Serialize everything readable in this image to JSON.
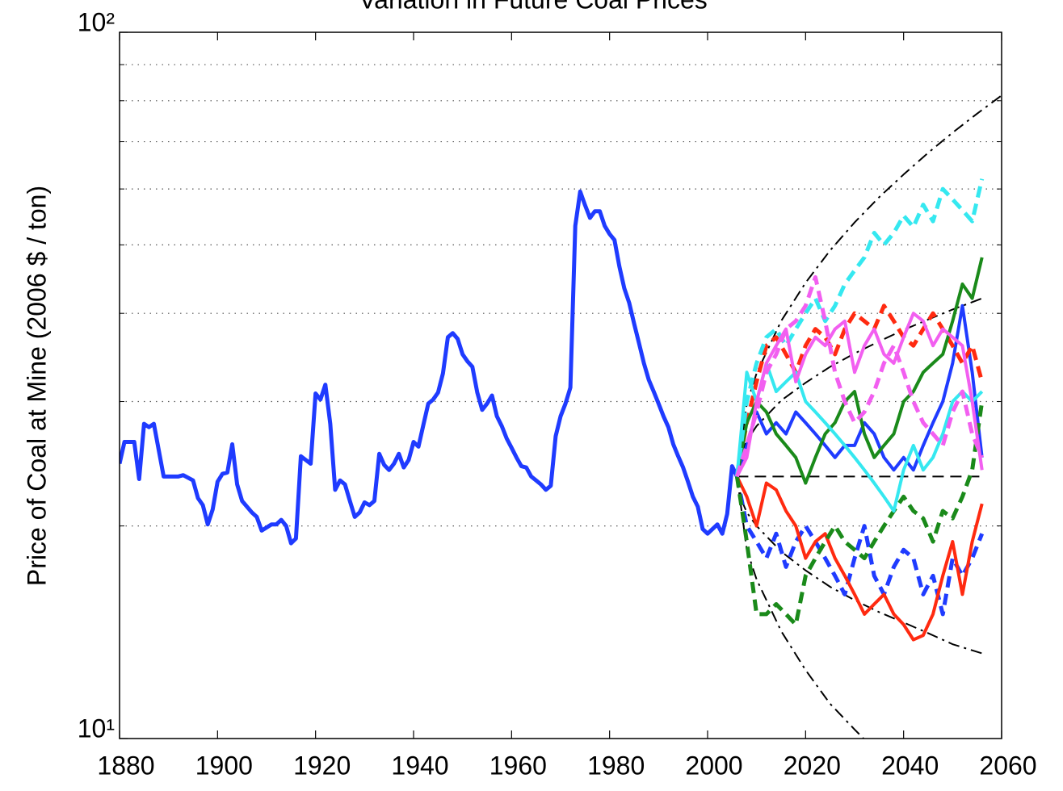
{
  "chart_data": {
    "type": "line",
    "title": "Variation in Future Coal Prices",
    "y_label": "Price of Coal at Mine (2006 $ / ton)",
    "y_scale": "log",
    "xlim": [
      1880,
      2060
    ],
    "ylim": [
      10,
      100
    ],
    "xticks": [
      1880,
      1900,
      1920,
      1940,
      1960,
      1980,
      2000,
      2020,
      2040,
      2060
    ],
    "yticks": [
      {
        "value": 10,
        "label": "10¹"
      },
      {
        "value": 100,
        "label": "10²"
      }
    ],
    "minor_yticks": [
      20,
      30,
      40,
      50,
      60,
      70,
      80,
      90
    ],
    "grid": "minor-y",
    "series": [
      {
        "color": "#1f3bff",
        "style": "solid",
        "width": 5,
        "x": [
          1880,
          1881,
          1883,
          1884,
          1885,
          1886,
          1887,
          1889,
          1892,
          1893,
          1895,
          1896,
          1897,
          1898,
          1899,
          1900,
          1901,
          1902,
          1903,
          1904,
          1905,
          1907,
          1908,
          1909,
          1911,
          1912,
          1913,
          1914,
          1915,
          1916,
          1917,
          1918,
          1919,
          1920,
          1921,
          1922,
          1923,
          1924,
          1925,
          1926,
          1927,
          1928,
          1929,
          1930,
          1931,
          1932,
          1933,
          1934,
          1935,
          1936,
          1937,
          1938,
          1939,
          1940,
          1941,
          1942,
          1943,
          1944,
          1945,
          1946,
          1947,
          1948,
          1949,
          1950,
          1951,
          1952,
          1953,
          1954,
          1955,
          1956,
          1957,
          1958,
          1959,
          1960,
          1961,
          1962,
          1963,
          1964,
          1965,
          1966,
          1967,
          1968,
          1969,
          1970,
          1971,
          1972,
          1973,
          1974,
          1975,
          1976,
          1977,
          1978,
          1979,
          1980,
          1981,
          1982,
          1983,
          1984,
          1985,
          1986,
          1987,
          1988,
          1989,
          1990,
          1991,
          1992,
          1993,
          1994,
          1995,
          1996,
          1997,
          1998,
          1999,
          2000,
          2001,
          2002,
          2003,
          2004,
          2005,
          2006
        ],
        "values": [
          24.5,
          26.3,
          26.3,
          23.3,
          27.9,
          27.6,
          27.9,
          23.5,
          23.5,
          23.6,
          23.2,
          21.9,
          21.4,
          20.1,
          21.1,
          23.1,
          23.7,
          23.8,
          26.1,
          22.9,
          21.7,
          20.9,
          20.6,
          19.7,
          20.1,
          20.1,
          20.4,
          20.0,
          18.9,
          19.2,
          25.1,
          24.8,
          24.5,
          30.8,
          30.2,
          31.7,
          27.9,
          22.5,
          23.2,
          22.9,
          21.7,
          20.6,
          20.9,
          21.6,
          21.4,
          21.7,
          25.3,
          24.4,
          24.0,
          24.5,
          25.3,
          24.2,
          24.8,
          26.3,
          25.9,
          27.8,
          29.8,
          30.2,
          30.9,
          32.9,
          37.0,
          37.5,
          36.8,
          35.0,
          34.2,
          33.6,
          30.9,
          29.2,
          29.8,
          30.6,
          28.6,
          27.7,
          26.6,
          25.8,
          25.0,
          24.3,
          24.2,
          23.5,
          23.2,
          22.9,
          22.5,
          22.8,
          26.8,
          28.6,
          29.8,
          31.4,
          53.2,
          59.5,
          56.9,
          54.6,
          55.8,
          55.8,
          53.2,
          51.8,
          50.8,
          46.6,
          43.4,
          41.4,
          38.7,
          36.3,
          34.0,
          32.2,
          31.0,
          29.8,
          28.6,
          27.6,
          26.1,
          25.1,
          24.2,
          23.1,
          22.0,
          21.3,
          19.8,
          19.5,
          19.8,
          20.1,
          19.5,
          20.8,
          24.3,
          23.5
        ]
      },
      {
        "color": "#000000",
        "style": "dashdot",
        "width": 2,
        "x": [
          2006,
          2008,
          2010,
          2015,
          2020,
          2025,
          2030,
          2035,
          2040,
          2045,
          2050,
          2055,
          2060
        ],
        "values": [
          23.5,
          29.8,
          32.9,
          39.0,
          44.2,
          49.1,
          53.8,
          58.4,
          62.9,
          67.5,
          72.1,
          76.7,
          81.4
        ]
      },
      {
        "color": "#000000",
        "style": "dashdot",
        "width": 2,
        "x": [
          2006,
          2008,
          2010,
          2015,
          2020,
          2025,
          2030,
          2035
        ],
        "values": [
          23.5,
          18.5,
          16.8,
          14.2,
          12.5,
          11.2,
          10.3,
          9.5
        ]
      },
      {
        "color": "#000000",
        "style": "dashdot",
        "width": 2,
        "x": [
          2006,
          2007,
          2008,
          2010,
          2015,
          2020,
          2025,
          2030,
          2035,
          2040,
          2045,
          2050,
          2056
        ],
        "values": [
          23.5,
          25.5,
          26.4,
          27.7,
          30.1,
          31.9,
          33.6,
          35.1,
          36.5,
          37.9,
          39.2,
          40.5,
          42.0
        ]
      },
      {
        "color": "#000000",
        "style": "dashdot",
        "width": 2,
        "x": [
          2006,
          2007,
          2008,
          2010,
          2015,
          2020,
          2025,
          2030,
          2035,
          2040,
          2045,
          2050,
          2056
        ],
        "values": [
          23.5,
          21.7,
          20.9,
          20.0,
          18.4,
          17.3,
          16.4,
          15.7,
          15.1,
          14.6,
          14.1,
          13.6,
          13.2
        ]
      },
      {
        "color": "#000000",
        "style": "dashed",
        "width": 2,
        "x": [
          2006,
          2056
        ],
        "values": [
          23.5,
          23.5
        ]
      },
      {
        "color": "#1f3bff",
        "style": "solid",
        "width": 4,
        "x": [
          2006,
          2008,
          2010,
          2012,
          2014,
          2016,
          2018,
          2020,
          2022,
          2024,
          2026,
          2028,
          2030,
          2032,
          2034,
          2036,
          2038,
          2040,
          2042,
          2044,
          2046,
          2048,
          2050,
          2052,
          2054,
          2056
        ],
        "values": [
          23.5,
          26,
          29,
          27,
          28,
          27,
          29,
          28,
          27,
          26,
          25,
          26,
          26,
          28,
          27,
          25,
          24,
          25,
          24,
          26,
          28,
          30,
          34,
          41,
          33,
          25
        ]
      },
      {
        "color": "#1f3bff",
        "style": "dashed",
        "width": 5,
        "x": [
          2006,
          2008,
          2010,
          2012,
          2014,
          2016,
          2018,
          2020,
          2022,
          2024,
          2026,
          2028,
          2030,
          2032,
          2034,
          2036,
          2038,
          2040,
          2042,
          2044,
          2046,
          2048,
          2050,
          2052,
          2054,
          2056
        ],
        "values": [
          23.5,
          20,
          19,
          18,
          19.5,
          17.5,
          19,
          20,
          19,
          18,
          17,
          16,
          18,
          20,
          17,
          16,
          17.5,
          18.5,
          18,
          16,
          17,
          15,
          18,
          17,
          18,
          19.5
        ]
      },
      {
        "color": "#ff2a10",
        "style": "solid",
        "width": 4,
        "x": [
          2006,
          2008,
          2010,
          2012,
          2014,
          2016,
          2018,
          2020,
          2022,
          2024,
          2026,
          2028,
          2030,
          2032,
          2034,
          2036,
          2038,
          2040,
          2042,
          2044,
          2046,
          2048,
          2050,
          2052,
          2054,
          2056
        ],
        "values": [
          23.5,
          22,
          20,
          23,
          22.5,
          21,
          20,
          18,
          19,
          19.5,
          18,
          17,
          16,
          15,
          15.5,
          16,
          15,
          14.5,
          13.8,
          14,
          15,
          17,
          19,
          16,
          19,
          21.5
        ]
      },
      {
        "color": "#ff2a10",
        "style": "dashed",
        "width": 5,
        "x": [
          2006,
          2008,
          2010,
          2012,
          2014,
          2016,
          2018,
          2020,
          2022,
          2024,
          2026,
          2028,
          2030,
          2032,
          2034,
          2036,
          2038,
          2040,
          2042,
          2044,
          2046,
          2048,
          2050,
          2052,
          2054,
          2056
        ],
        "values": [
          23.5,
          28,
          32,
          36,
          37,
          35,
          33,
          36,
          38,
          37,
          35,
          38,
          40,
          39,
          38,
          41,
          39,
          37,
          36,
          38,
          40,
          38,
          36,
          34,
          36,
          32
        ]
      },
      {
        "color": "#1a8a1a",
        "style": "solid",
        "width": 4,
        "x": [
          2006,
          2008,
          2010,
          2012,
          2014,
          2016,
          2018,
          2020,
          2022,
          2024,
          2026,
          2028,
          2030,
          2032,
          2034,
          2036,
          2038,
          2040,
          2042,
          2044,
          2046,
          2048,
          2050,
          2052,
          2054,
          2056
        ],
        "values": [
          23.5,
          28,
          30,
          29,
          27,
          26,
          25,
          23,
          25,
          27,
          28,
          30,
          31,
          27,
          25,
          26,
          27,
          30,
          31,
          33,
          34,
          35,
          39,
          44,
          42,
          48
        ]
      },
      {
        "color": "#1a8a1a",
        "style": "dashed",
        "width": 5,
        "x": [
          2006,
          2008,
          2010,
          2012,
          2014,
          2016,
          2018,
          2020,
          2022,
          2024,
          2026,
          2028,
          2030,
          2032,
          2034,
          2036,
          2038,
          2040,
          2042,
          2044,
          2046,
          2048,
          2050,
          2052,
          2054,
          2056
        ],
        "values": [
          23.5,
          19,
          15,
          15,
          15.5,
          15,
          14.5,
          17,
          18,
          19,
          20,
          19,
          18.5,
          18,
          19,
          20,
          21,
          22,
          21,
          20.5,
          19,
          21,
          20.5,
          22,
          24,
          30
        ]
      },
      {
        "color": "#35e8f0",
        "style": "solid",
        "width": 4,
        "x": [
          2006,
          2008,
          2010,
          2012,
          2014,
          2016,
          2018,
          2020,
          2022,
          2024,
          2026,
          2028,
          2030,
          2032,
          2034,
          2036,
          2038,
          2040,
          2042,
          2044,
          2046,
          2048,
          2050,
          2052,
          2054,
          2056
        ],
        "values": [
          23.5,
          33,
          30,
          34,
          31,
          32,
          33,
          30,
          29,
          28,
          27,
          26,
          25,
          24,
          23,
          22,
          21,
          24,
          26,
          24,
          25,
          27,
          30,
          31,
          30,
          31
        ]
      },
      {
        "color": "#35e8f0",
        "style": "dashed",
        "width": 5,
        "x": [
          2006,
          2008,
          2010,
          2012,
          2014,
          2016,
          2018,
          2020,
          2022,
          2024,
          2026,
          2028,
          2030,
          2032,
          2034,
          2036,
          2038,
          2040,
          2042,
          2044,
          2046,
          2048,
          2050,
          2052,
          2054,
          2056
        ],
        "values": [
          23.5,
          30,
          34,
          37,
          38,
          36,
          38,
          40,
          42,
          39,
          41,
          44,
          46,
          48,
          52,
          50,
          52,
          55,
          53,
          57,
          54,
          60,
          58,
          56,
          54,
          62
        ]
      },
      {
        "color": "#f25ff0",
        "style": "solid",
        "width": 4,
        "x": [
          2006,
          2008,
          2010,
          2012,
          2014,
          2016,
          2018,
          2020,
          2022,
          2024,
          2026,
          2028,
          2030,
          2032,
          2034,
          2036,
          2038,
          2040,
          2042,
          2044,
          2046,
          2048,
          2050,
          2052,
          2054,
          2056
        ],
        "values": [
          23.5,
          25,
          30,
          34,
          36,
          38,
          32,
          35,
          37,
          36,
          38,
          39,
          33,
          36,
          38,
          35,
          34,
          37,
          40,
          39,
          36,
          38,
          37,
          36,
          30,
          24
        ]
      },
      {
        "color": "#f25ff0",
        "style": "dashed",
        "width": 5,
        "x": [
          2006,
          2008,
          2010,
          2012,
          2014,
          2016,
          2018,
          2020,
          2022,
          2024,
          2026,
          2028,
          2030,
          2032,
          2034,
          2036,
          2038,
          2040,
          2042,
          2044,
          2046,
          2048,
          2050,
          2052,
          2054,
          2056
        ],
        "values": [
          23.5,
          26,
          29,
          33,
          35,
          38,
          39,
          41,
          45,
          39,
          33,
          30,
          28,
          29,
          31,
          34,
          36,
          33,
          30,
          28,
          27,
          26,
          29,
          31,
          27,
          25
        ]
      }
    ]
  }
}
